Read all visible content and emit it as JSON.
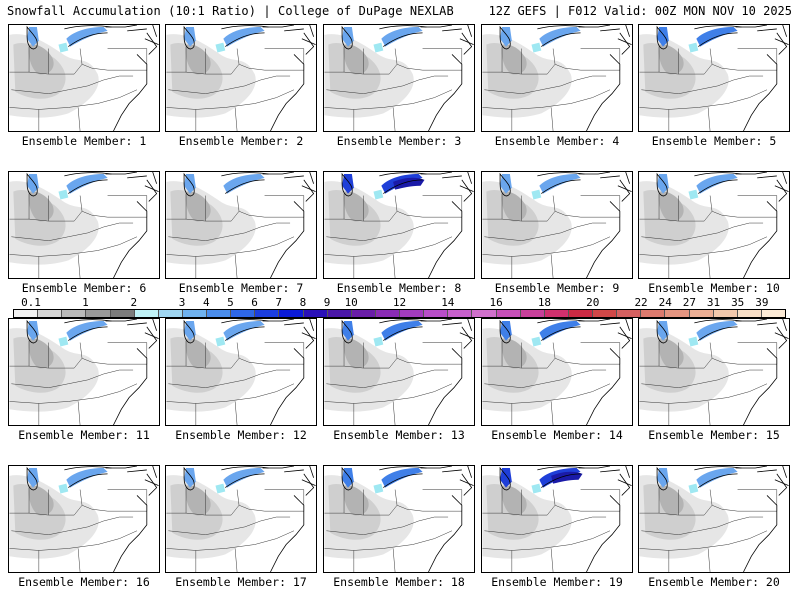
{
  "header": {
    "title_left": "Snowfall Accumulation (10:1 Ratio) | College of DuPage NEXLAB",
    "title_right": "12Z GEFS | F012 Valid: 00Z MON NOV 10 2025"
  },
  "panels": [
    {
      "label": "Ensemble Member: 1",
      "intensity": 2
    },
    {
      "label": "Ensemble Member: 2",
      "intensity": 2
    },
    {
      "label": "Ensemble Member: 3",
      "intensity": 2
    },
    {
      "label": "Ensemble Member: 4",
      "intensity": 2
    },
    {
      "label": "Ensemble Member: 5",
      "intensity": 3
    },
    {
      "label": "Ensemble Member: 6",
      "intensity": 2
    },
    {
      "label": "Ensemble Member: 7",
      "intensity": 1
    },
    {
      "label": "Ensemble Member: 8",
      "intensity": 4
    },
    {
      "label": "Ensemble Member: 9",
      "intensity": 2
    },
    {
      "label": "Ensemble Member: 10",
      "intensity": 2
    },
    {
      "label": "Ensemble Member: 11",
      "intensity": 2
    },
    {
      "label": "Ensemble Member: 12",
      "intensity": 2
    },
    {
      "label": "Ensemble Member: 13",
      "intensity": 3
    },
    {
      "label": "Ensemble Member: 14",
      "intensity": 3
    },
    {
      "label": "Ensemble Member: 15",
      "intensity": 2
    },
    {
      "label": "Ensemble Member: 16",
      "intensity": 2
    },
    {
      "label": "Ensemble Member: 17",
      "intensity": 2
    },
    {
      "label": "Ensemble Member: 18",
      "intensity": 3
    },
    {
      "label": "Ensemble Member: 19",
      "intensity": 4
    },
    {
      "label": "Ensemble Member: 20",
      "intensity": 2
    }
  ],
  "colorbar": {
    "labels": [
      "0.1",
      "1",
      "2",
      "3",
      "4",
      "5",
      "6",
      "7",
      "8",
      "9",
      "10",
      "12",
      "14",
      "16",
      "18",
      "20",
      "22",
      "24",
      "27",
      "31",
      "35",
      "39"
    ],
    "colors": [
      "#f2f2f2",
      "#d6d6d6",
      "#b9b9b9",
      "#9a9a9a",
      "#7c7c7c",
      "#bff2f7",
      "#9fd6f2",
      "#6fb2ef",
      "#4a8ded",
      "#2e67e8",
      "#1b3ee0",
      "#0b1ad8",
      "#2a10b8",
      "#4a16a8",
      "#6a1ea8",
      "#8a2cb4",
      "#a43cbe",
      "#b84ec8",
      "#c860cc",
      "#d070cc",
      "#c64fb8",
      "#c8409a",
      "#d0306e",
      "#cc2a44",
      "#d04848",
      "#d46060",
      "#dc7a6e",
      "#e49480",
      "#ecae94",
      "#f2c8ac",
      "#f8dec6",
      "#fcead6"
    ]
  }
}
